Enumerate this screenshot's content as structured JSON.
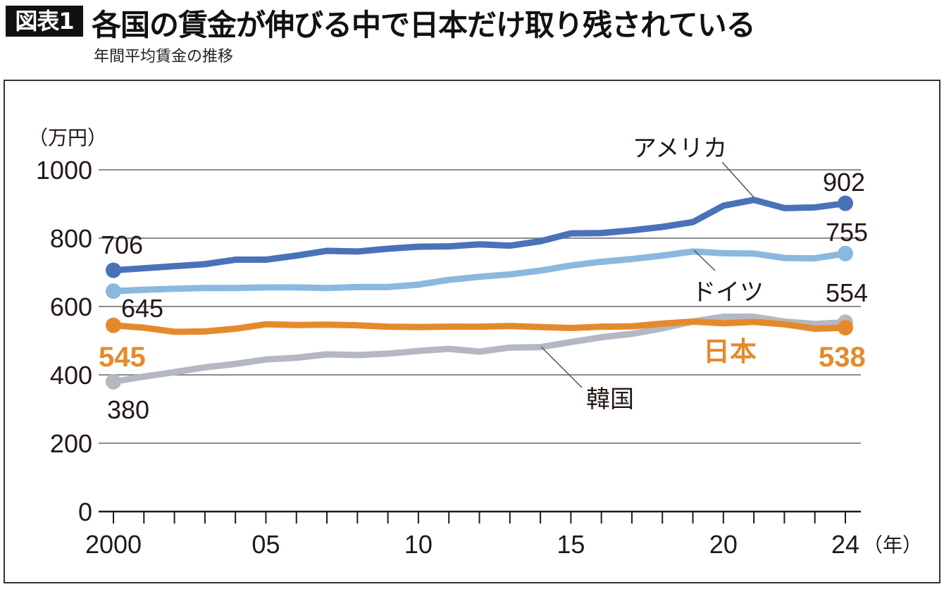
{
  "header": {
    "badge": "図表1",
    "title": "各国の賃金が伸びる中で日本だけ取り残されている",
    "subtitle": "年間平均賃金の推移"
  },
  "chart_data": {
    "type": "line",
    "title": "各国の賃金が伸びる中で日本だけ取り残されている",
    "subtitle": "年間平均賃金の推移",
    "xlabel": "（年）",
    "ylabel": "（万円）",
    "ylim": [
      0,
      1000
    ],
    "xlim": [
      2000,
      2024
    ],
    "grid": true,
    "y_ticks": [
      0,
      200,
      400,
      600,
      800,
      1000
    ],
    "y_tick_labels": [
      "0",
      "200",
      "400",
      "600",
      "800",
      "1000"
    ],
    "x_tick_labels": [
      {
        "year": 2000,
        "label": "2000"
      },
      {
        "year": 2005,
        "label": "05"
      },
      {
        "year": 2010,
        "label": "10"
      },
      {
        "year": 2015,
        "label": "15"
      },
      {
        "year": 2020,
        "label": "20"
      },
      {
        "year": 2024,
        "label": "24"
      }
    ],
    "x": [
      2000,
      2001,
      2002,
      2003,
      2004,
      2005,
      2006,
      2007,
      2008,
      2009,
      2010,
      2011,
      2012,
      2013,
      2014,
      2015,
      2016,
      2017,
      2018,
      2019,
      2020,
      2021,
      2022,
      2023,
      2024
    ],
    "series": [
      {
        "name": "アメリカ",
        "key": "usa",
        "color": "#4a72b8",
        "values": [
          706,
          712,
          718,
          724,
          737,
          737,
          749,
          763,
          761,
          769,
          775,
          776,
          782,
          778,
          791,
          814,
          815,
          823,
          833,
          847,
          895,
          912,
          888,
          890,
          902
        ],
        "start_label": "706",
        "end_label": "902"
      },
      {
        "name": "ドイツ",
        "key": "germany",
        "color": "#8ab8df",
        "values": [
          645,
          649,
          652,
          654,
          654,
          656,
          656,
          654,
          657,
          657,
          664,
          678,
          687,
          694,
          705,
          720,
          731,
          739,
          749,
          761,
          756,
          755,
          742,
          741,
          755
        ],
        "start_label": "645",
        "end_label": "755"
      },
      {
        "name": "日本",
        "key": "japan",
        "color": "#e58a2c",
        "values": [
          545,
          538,
          526,
          527,
          535,
          548,
          546,
          547,
          545,
          541,
          540,
          541,
          541,
          543,
          540,
          537,
          541,
          542,
          550,
          556,
          551,
          555,
          548,
          535,
          538
        ],
        "start_label": "545",
        "end_label": "538"
      },
      {
        "name": "韓国",
        "key": "korea",
        "color": "#b3b8c2",
        "values": [
          380,
          395,
          408,
          422,
          432,
          445,
          450,
          460,
          458,
          462,
          470,
          476,
          468,
          480,
          481,
          496,
          510,
          520,
          536,
          556,
          570,
          570,
          556,
          549,
          554
        ],
        "start_label": "380",
        "end_label": "554"
      }
    ]
  }
}
